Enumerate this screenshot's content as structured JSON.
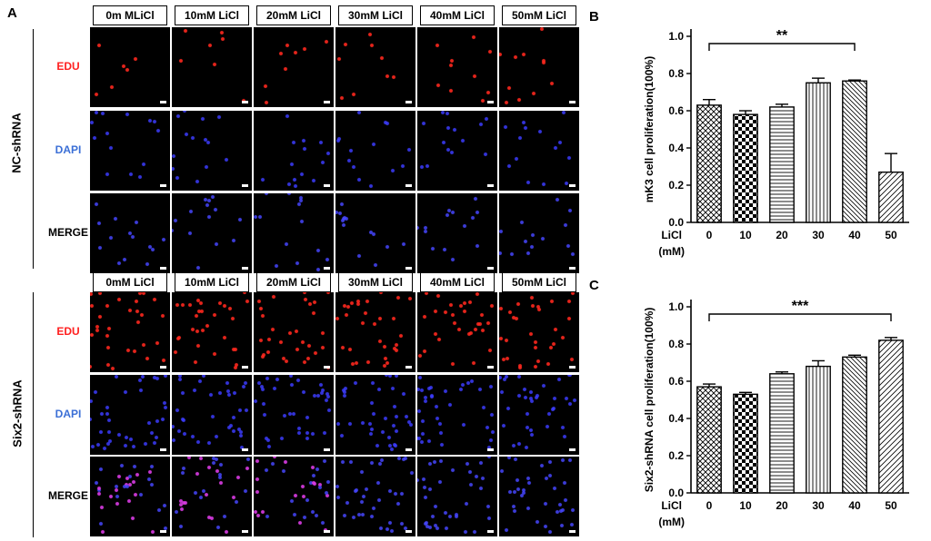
{
  "figure": {
    "panel_labels": [
      "A",
      "B",
      "C"
    ],
    "colors": {
      "edu": "#ff2020",
      "dapi": "#3b6fd6",
      "merge": "#000000",
      "tile_bg": "#000000",
      "bar_fill": "#ffffff",
      "bar_stroke": "#000000"
    },
    "group1": {
      "label": "NC-shRNA",
      "columns": [
        "0m MLiCl",
        "10mM LiCl",
        "20mM LiCl",
        "30mM LiCl",
        "40mM LiCl",
        "50mM LiCl"
      ],
      "rows": [
        "EDU",
        "DAPI",
        "MERGE"
      ]
    },
    "group2": {
      "label": "Six2-shRNA",
      "columns": [
        "0mM LiCl",
        "10mM LiCl",
        "20mM LiCl",
        "30mM LiCl",
        "40mM LiCl",
        "50mM LiCl"
      ],
      "rows": [
        "EDU",
        "DAPI",
        "MERGE"
      ]
    }
  },
  "chart_data": [
    {
      "type": "bar",
      "panel": "B",
      "ylabel": "mK3 cell proliferation(100%)",
      "xlabel_lines": [
        "LiCl",
        "(mM)"
      ],
      "categories": [
        "0",
        "10",
        "20",
        "30",
        "40",
        "50"
      ],
      "values": [
        0.63,
        0.58,
        0.62,
        0.75,
        0.76,
        0.27
      ],
      "errors": [
        0.03,
        0.02,
        0.015,
        0.025,
        0.005,
        0.1
      ],
      "patterns": [
        "crosshatch",
        "checker",
        "horizontal",
        "vertical",
        "diagonal-back",
        "diagonal-fwd"
      ],
      "ylim": [
        0,
        1.0
      ],
      "yticks": [
        "0.0",
        "0.2",
        "0.4",
        "0.6",
        "0.8",
        "1.0"
      ],
      "significance": {
        "label": "**",
        "from": "0",
        "to": "40"
      }
    },
    {
      "type": "bar",
      "panel": "C",
      "ylabel": "Six2-shRNA cell proliferation(100%)",
      "xlabel_lines": [
        "LiCl",
        "(mM)"
      ],
      "categories": [
        "0",
        "10",
        "20",
        "30",
        "40",
        "50"
      ],
      "values": [
        0.57,
        0.53,
        0.64,
        0.68,
        0.73,
        0.82
      ],
      "errors": [
        0.015,
        0.01,
        0.01,
        0.03,
        0.01,
        0.015
      ],
      "patterns": [
        "crosshatch",
        "checker",
        "horizontal",
        "vertical",
        "diagonal-back",
        "diagonal-fwd"
      ],
      "ylim": [
        0,
        1.0
      ],
      "yticks": [
        "0.0",
        "0.2",
        "0.4",
        "0.6",
        "0.8",
        "1.0"
      ],
      "significance": {
        "label": "***",
        "from": "0",
        "to": "50"
      }
    }
  ]
}
